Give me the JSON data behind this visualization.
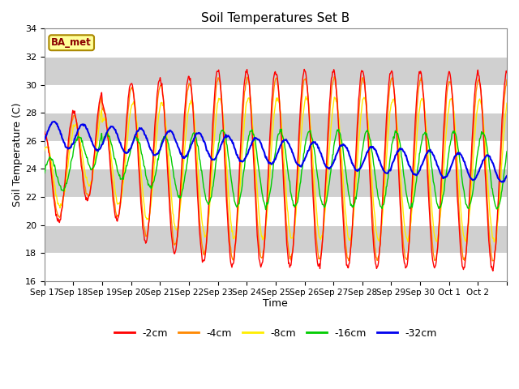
{
  "title": "Soil Temperatures Set B",
  "xlabel": "Time",
  "ylabel": "Soil Temperature (C)",
  "ylim": [
    16,
    34
  ],
  "label_box": "BA_met",
  "colors": {
    "-2cm": "#ff0000",
    "-4cm": "#ff8800",
    "-8cm": "#ffee00",
    "-16cm": "#00cc00",
    "-32cm": "#0000ee"
  },
  "legend_labels": [
    "-2cm",
    "-4cm",
    "-8cm",
    "-16cm",
    "-32cm"
  ],
  "xtick_labels": [
    "Sep 17",
    "Sep 18",
    "Sep 19",
    "Sep 20",
    "Sep 21",
    "Sep 22",
    "Sep 23",
    "Sep 24",
    "Sep 25",
    "Sep 26",
    "Sep 27",
    "Sep 28",
    "Sep 29",
    "Sep 30",
    "Oct 1",
    "Oct 2"
  ],
  "n_days": 16,
  "points_per_day": 48
}
